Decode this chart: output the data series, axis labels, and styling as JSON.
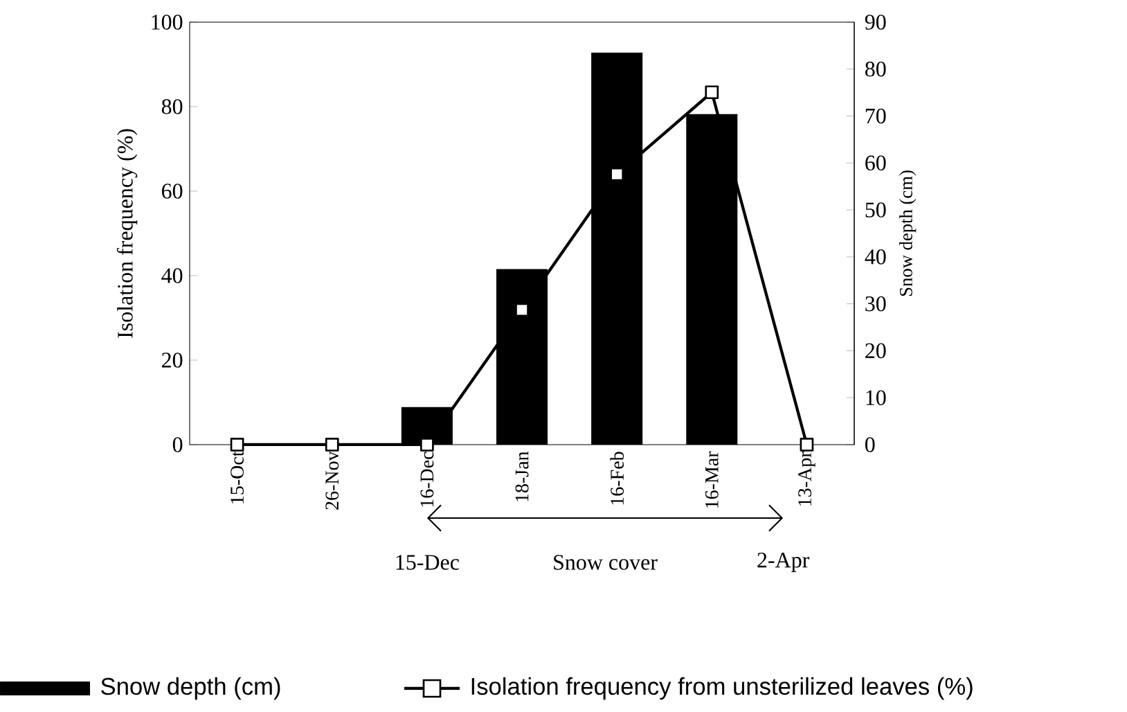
{
  "chart_data": {
    "type": "bar",
    "categories": [
      "15-Oct",
      "26-Nov",
      "16-Dec",
      "18-Jan",
      "16-Feb",
      "16-Mar",
      "13-Apr"
    ],
    "series": [
      {
        "name": "Snow depth (cm)",
        "axis": "y2",
        "color": "#000000",
        "values": [
          0,
          0,
          8,
          37.4,
          83.5,
          70.4,
          0
        ]
      },
      {
        "name": "Isolation frequency from unsterilized leaves (%)",
        "type": "line",
        "axis": "y",
        "color": "#000000",
        "marker": "square",
        "values": [
          0,
          0,
          0,
          31.9,
          64,
          83.4,
          0
        ]
      }
    ],
    "ylabel": "Isolation frequency (%)",
    "y2label": "Snow depth (cm)",
    "ylim": [
      0,
      100
    ],
    "yticks": [
      0,
      20,
      40,
      60,
      80,
      100
    ],
    "y2lim": [
      0,
      90
    ],
    "y2ticks": [
      0,
      10,
      20,
      30,
      40,
      50,
      60,
      70,
      80,
      90
    ],
    "annotations": [
      "15-Dec",
      "Snow cover",
      "2-Apr"
    ],
    "legend": "bottom"
  }
}
